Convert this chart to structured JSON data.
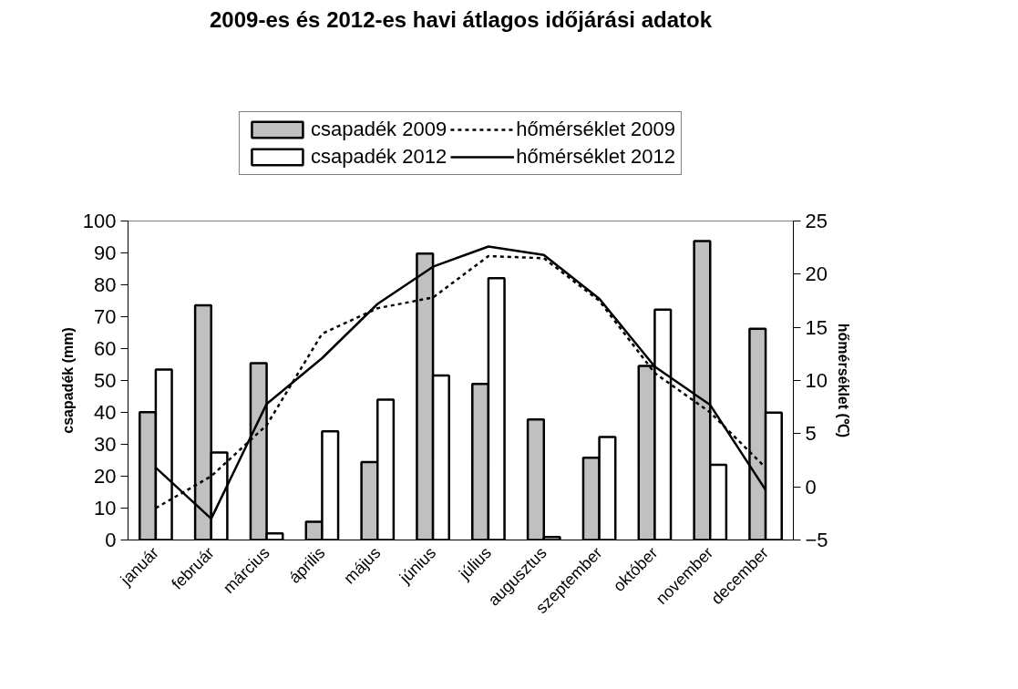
{
  "chart_data": {
    "type": "bar",
    "title": "2009-es és 2012-es havi átlagos időjárási adatok",
    "ylabel": "csapadék (mm)",
    "y2label": "hőmérséklet (℃)",
    "categories": [
      "január",
      "február",
      "március",
      "április",
      "május",
      "június",
      "július",
      "augusztus",
      "szeptember",
      "október",
      "november",
      "december"
    ],
    "series": [
      {
        "name": "csapadék 2009",
        "color": "#c0c0c0",
        "values": [
          40.1,
          73.6,
          55.4,
          5.7,
          24.4,
          89.8,
          48.9,
          37.8,
          25.8,
          54.6,
          93.7,
          66.2
        ]
      },
      {
        "name": "csapadék 2012",
        "color": "#ffffff",
        "values": [
          53.4,
          27.4,
          2.1,
          34.1,
          44.0,
          51.6,
          82.1,
          0.9,
          32.3,
          72.2,
          23.6,
          39.9
        ]
      },
      {
        "name": "hőmérséklet 2009",
        "type": "line",
        "axis": "y2",
        "line_style": "dashed",
        "color": "#000000",
        "values": [
          -2.0,
          1.0,
          5.8,
          14.4,
          16.8,
          17.8,
          21.7,
          21.5,
          17.5,
          10.7,
          7.0,
          1.8
        ]
      },
      {
        "name": "hőmérséklet 2012",
        "type": "line",
        "axis": "y2",
        "line_style": "solid",
        "color": "#000000",
        "values": [
          1.8,
          -3.0,
          7.8,
          12.1,
          17.2,
          20.7,
          22.6,
          21.8,
          17.7,
          11.3,
          7.7,
          -0.3
        ]
      }
    ],
    "ylim": [
      0,
      100
    ],
    "yticks": [
      0,
      10,
      20,
      30,
      40,
      50,
      60,
      70,
      80,
      90,
      100
    ],
    "y2lim": [
      -5,
      25
    ],
    "y2ticks": [
      -5,
      0,
      5,
      10,
      15,
      20,
      25
    ],
    "grid": false,
    "legend": "top"
  }
}
